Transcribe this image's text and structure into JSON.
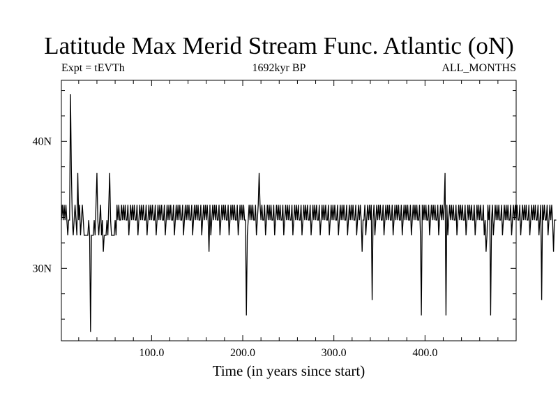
{
  "chart_data": {
    "type": "line",
    "title": "Latitude Max Merid Stream Func. Atlantic (oN)",
    "subtitle_left": "Expt = tEVTh",
    "subtitle_center": "1692kyr BP",
    "subtitle_right": "ALL_MONTHS",
    "xlabel": "Time (in years since start)",
    "ylabel": "",
    "xlim": [
      1,
      500
    ],
    "ylim": [
      24.3,
      44.8
    ],
    "x_ticks": [
      100,
      200,
      300,
      400
    ],
    "x_tick_labels": [
      "100.0",
      "200.0",
      "300.0",
      "400.0"
    ],
    "y_ticks": [
      30,
      40
    ],
    "y_tick_labels": [
      "30N",
      "40N"
    ],
    "grid": false,
    "line_color": "#000000",
    "step": 1,
    "series": [
      {
        "values": [
          33.8,
          35,
          33.8,
          35,
          33.8,
          35,
          33.8,
          32.6,
          33.8,
          33.8,
          43.7,
          37.5,
          33.8,
          32.6,
          33.8,
          35,
          33.8,
          32.6,
          37.5,
          33.8,
          35,
          32.6,
          33.8,
          35,
          33.8,
          32.6,
          32.6,
          32.6,
          32.6,
          32.6,
          33.8,
          32.6,
          25,
          32.6,
          32.6,
          32.6,
          33.8,
          32.6,
          35,
          37.5,
          33.8,
          32.6,
          33.8,
          35,
          32.6,
          33.8,
          31.3,
          32.6,
          32.6,
          32.6,
          33.8,
          32.6,
          35,
          37.5,
          33.8,
          32.6,
          32.6,
          32.6,
          32.6,
          33.8,
          32.6,
          35,
          33.8,
          35,
          33.8,
          33.8,
          35,
          33.8,
          35,
          33.8,
          35,
          33.8,
          33.8,
          35,
          32.6,
          33.8,
          35,
          33.8,
          35,
          33.8,
          35,
          33.8,
          33.8,
          35,
          32.6,
          33.8,
          35,
          33.8,
          35,
          33.8,
          35,
          33.8,
          33.8,
          35,
          32.6,
          33.8,
          35,
          33.8,
          35,
          33.8,
          35,
          33.8,
          33.8,
          35,
          32.6,
          33.8,
          35,
          33.8,
          35,
          33.8,
          35,
          33.8,
          33.8,
          35,
          32.6,
          33.8,
          35,
          33.8,
          35,
          33.8,
          35,
          33.8,
          33.8,
          35,
          32.6,
          33.8,
          35,
          33.8,
          35,
          33.8,
          35,
          33.8,
          33.8,
          35,
          32.6,
          33.8,
          35,
          33.8,
          35,
          33.8,
          35,
          33.8,
          33.8,
          35,
          32.6,
          33.8,
          35,
          33.8,
          35,
          33.8,
          35,
          33.8,
          33.8,
          35,
          32.6,
          33.8,
          35,
          33.8,
          35,
          33.8,
          35,
          33.8,
          31.3,
          35,
          32.6,
          33.8,
          35,
          33.8,
          35,
          33.8,
          35,
          33.8,
          33.8,
          35,
          32.6,
          33.8,
          35,
          33.8,
          35,
          33.8,
          35,
          33.8,
          33.8,
          35,
          32.6,
          33.8,
          35,
          33.8,
          35,
          33.8,
          35,
          33.8,
          33.8,
          35,
          32.6,
          33.8,
          35,
          33.8,
          35,
          33.8,
          35,
          33.8,
          33.8,
          26.3,
          32.6,
          33.8,
          35,
          33.8,
          35,
          33.8,
          35,
          33.8,
          33.8,
          35,
          32.6,
          33.8,
          35,
          37.5,
          35,
          33.8,
          35,
          33.8,
          33.8,
          35,
          32.6,
          33.8,
          35,
          33.8,
          35,
          33.8,
          35,
          33.8,
          33.8,
          35,
          32.6,
          33.8,
          35,
          33.8,
          35,
          33.8,
          35,
          33.8,
          33.8,
          35,
          32.6,
          33.8,
          35,
          33.8,
          35,
          33.8,
          35,
          33.8,
          33.8,
          35,
          32.6,
          33.8,
          35,
          33.8,
          35,
          33.8,
          35,
          33.8,
          33.8,
          35,
          32.6,
          33.8,
          35,
          33.8,
          35,
          33.8,
          35,
          33.8,
          33.8,
          35,
          32.6,
          33.8,
          35,
          33.8,
          35,
          33.8,
          35,
          33.8,
          33.8,
          35,
          32.6,
          33.8,
          35,
          33.8,
          35,
          33.8,
          35,
          33.8,
          33.8,
          35,
          32.6,
          33.8,
          35,
          33.8,
          35,
          33.8,
          35,
          33.8,
          33.8,
          35,
          32.6,
          33.8,
          35,
          33.8,
          35,
          33.8,
          35,
          33.8,
          33.8,
          35,
          32.6,
          33.8,
          35,
          33.8,
          35,
          33.8,
          35,
          33.8,
          33.8,
          35,
          32.6,
          33.8,
          35,
          33.8,
          35,
          33.8,
          31.3,
          33.8,
          33.8,
          35,
          32.6,
          33.8,
          35,
          33.8,
          35,
          33.8,
          35,
          27.5,
          33.8,
          35,
          32.6,
          33.8,
          35,
          33.8,
          35,
          33.8,
          35,
          33.8,
          33.8,
          35,
          32.6,
          33.8,
          35,
          33.8,
          35,
          33.8,
          35,
          33.8,
          33.8,
          35,
          32.6,
          33.8,
          35,
          33.8,
          35,
          33.8,
          35,
          33.8,
          33.8,
          35,
          32.6,
          33.8,
          35,
          33.8,
          35,
          33.8,
          35,
          33.8,
          33.8,
          35,
          32.6,
          33.8,
          35,
          33.8,
          35,
          33.8,
          35,
          33.8,
          33.8,
          35,
          32.6,
          26.3,
          35,
          33.8,
          35,
          33.8,
          35,
          33.8,
          33.8,
          35,
          32.6,
          33.8,
          35,
          33.8,
          35,
          33.8,
          35,
          33.8,
          33.8,
          35,
          32.6,
          33.8,
          35,
          33.8,
          35,
          33.8,
          35,
          37.5,
          26.3,
          35,
          32.6,
          33.8,
          35,
          33.8,
          35,
          33.8,
          35,
          33.8,
          33.8,
          35,
          32.6,
          33.8,
          35,
          33.8,
          35,
          33.8,
          35,
          33.8,
          33.8,
          35,
          32.6,
          33.8,
          35,
          33.8,
          35,
          33.8,
          35,
          33.8,
          33.8,
          35,
          32.6,
          33.8,
          35,
          33.8,
          35,
          33.8,
          35,
          33.8,
          33.8,
          35,
          32.6,
          33.8,
          31.3,
          32.6,
          35,
          33.8,
          35,
          26.3,
          33.8,
          35,
          32.6,
          33.8,
          35,
          33.8,
          35,
          33.8,
          35,
          33.8,
          33.8,
          35,
          32.6,
          33.8,
          35,
          33.8,
          35,
          33.8,
          35,
          33.8,
          33.8,
          35,
          32.6,
          33.8,
          35,
          33.8,
          35,
          33.8,
          35,
          33.8,
          33.8,
          35,
          32.6,
          33.8,
          35,
          33.8,
          35,
          33.8,
          35,
          33.8,
          33.8,
          35,
          32.6,
          33.8,
          35,
          33.8,
          35,
          33.8,
          35,
          33.8,
          33.8,
          35,
          32.6,
          33.8,
          35,
          27.5,
          35,
          33.8,
          35,
          33.8,
          33.8,
          35,
          32.6,
          33.8,
          35,
          33.8,
          35,
          33.8,
          31.3,
          33.8,
          33.8,
          33.8
        ]
      }
    ]
  }
}
